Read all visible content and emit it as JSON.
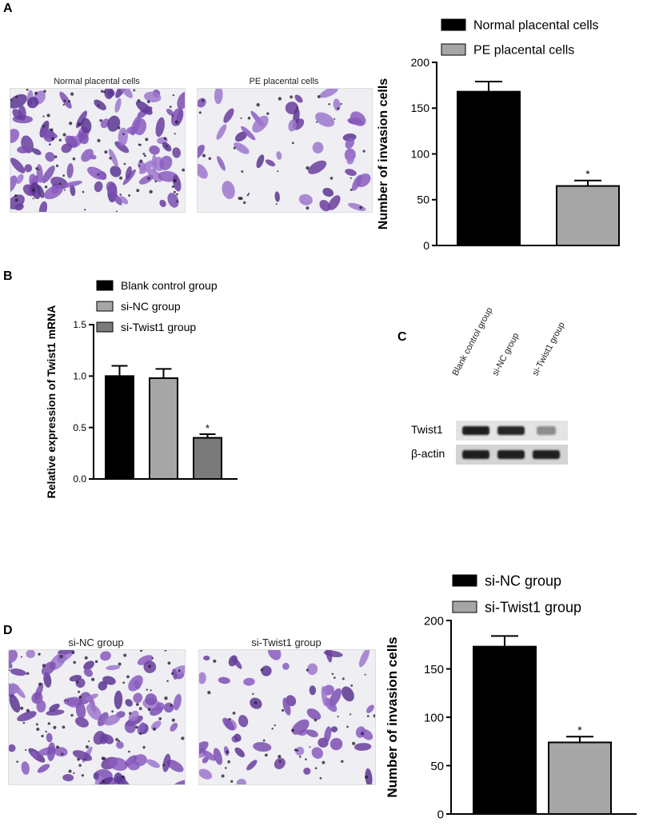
{
  "panels": {
    "a": "A",
    "b": "B",
    "c": "C",
    "d": "D"
  },
  "micrographs": {
    "a_left": "Normal placental cells",
    "a_right": "PE placental cells",
    "d_left": "si-NC group",
    "d_right": "si-Twist1 group"
  },
  "western_blot": {
    "lanes": [
      "Blank control group",
      "si-NC group",
      "si-Twist1 group"
    ],
    "rows": [
      "Twist1",
      "β-actin"
    ],
    "twist1_intensity": [
      1.0,
      0.95,
      0.35
    ],
    "actin_intensity": [
      1.0,
      1.0,
      1.0
    ]
  },
  "chart_data": [
    {
      "id": "A",
      "type": "bar",
      "categories": [
        "Normal placental cells",
        "PE placental cells"
      ],
      "values": [
        168,
        65
      ],
      "errors": [
        11,
        6
      ],
      "significance": [
        "",
        "*"
      ],
      "colors": [
        "#000000",
        "#a6a6a6"
      ],
      "ylabel": "Number of invasion cells",
      "ylim": [
        0,
        200
      ],
      "yticks": [
        0,
        50,
        100,
        150,
        200
      ],
      "legend": [
        "Normal placental cells",
        "PE placental cells"
      ],
      "legend_position": "top"
    },
    {
      "id": "B",
      "type": "bar",
      "categories": [
        "Blank control group",
        "si-NC group",
        "si-Twist1 group"
      ],
      "values": [
        1.0,
        0.98,
        0.4
      ],
      "errors": [
        0.1,
        0.09,
        0.035
      ],
      "significance": [
        "",
        "",
        "*"
      ],
      "colors": [
        "#000000",
        "#a6a6a6",
        "#7a7a7a"
      ],
      "ylabel": "Relative expression of Twist1 mRNA",
      "ylim": [
        0,
        1.5
      ],
      "yticks": [
        "0.0",
        "0.5",
        "1.0",
        "1.5"
      ],
      "legend": [
        "Blank control group",
        "si-NC group",
        "si-Twist1 group"
      ],
      "legend_position": "top"
    },
    {
      "id": "D",
      "type": "bar",
      "categories": [
        "si-NC group",
        "si-Twist1 group"
      ],
      "values": [
        173,
        74
      ],
      "errors": [
        11,
        6
      ],
      "significance": [
        "",
        "*"
      ],
      "colors": [
        "#000000",
        "#a6a6a6"
      ],
      "ylabel": "Number of invasion cells",
      "ylim": [
        0,
        200
      ],
      "yticks": [
        0,
        50,
        100,
        150,
        200
      ],
      "legend": [
        "si-NC group",
        "si-Twist1 group"
      ],
      "legend_position": "top"
    }
  ]
}
